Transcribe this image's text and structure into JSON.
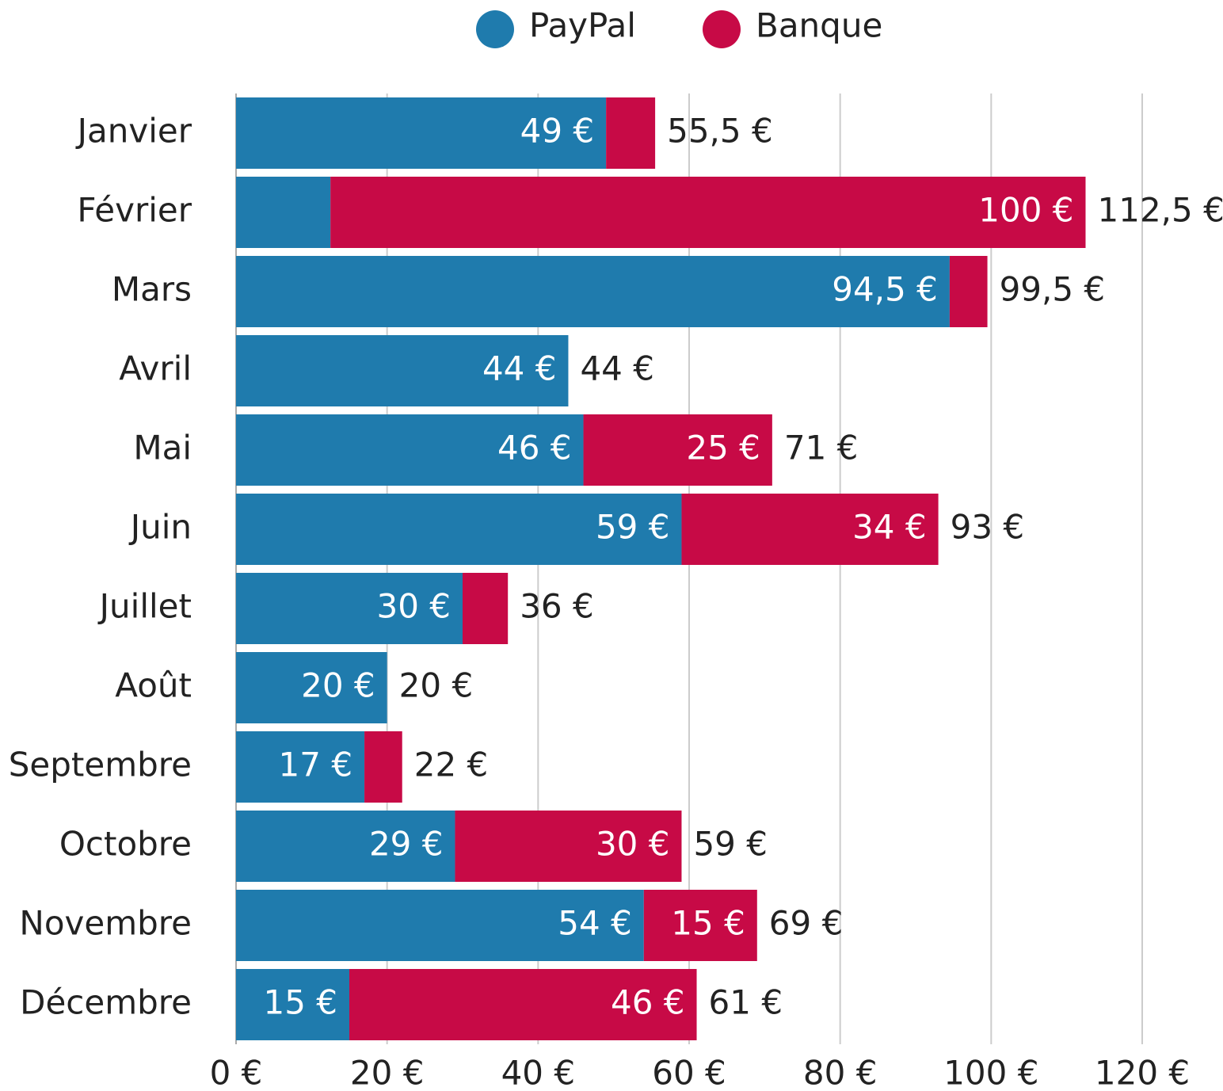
{
  "chart_data": {
    "type": "stacked-bar-horizontal",
    "categories": [
      "Janvier",
      "Février",
      "Mars",
      "Avril",
      "Mai",
      "Juin",
      "Juillet",
      "Août",
      "Septembre",
      "Octobre",
      "Novembre",
      "Décembre"
    ],
    "series": [
      {
        "name": "PayPal",
        "color": "#1f7bad",
        "values": [
          49,
          12.5,
          94.5,
          44,
          46,
          59,
          30,
          20,
          17,
          29,
          54,
          15
        ],
        "value_labels": [
          "49 €",
          null,
          "94,5 €",
          "44 €",
          "46 €",
          "59 €",
          "30 €",
          "20 €",
          "17 €",
          "29 €",
          "54 €",
          "15 €"
        ]
      },
      {
        "name": "Banque",
        "color": "#c70a46",
        "values": [
          6.5,
          100,
          5,
          0,
          25,
          34,
          6,
          0,
          5,
          30,
          15,
          46
        ],
        "value_labels": [
          null,
          "100 €",
          null,
          null,
          "25 €",
          "34 €",
          null,
          null,
          null,
          "30 €",
          "15 €",
          "46 €"
        ]
      }
    ],
    "totals": [
      55.5,
      112.5,
      99.5,
      44,
      71,
      93,
      36,
      20,
      22,
      59,
      69,
      61
    ],
    "total_labels": [
      "55,5 €",
      "112,5 €",
      "99,5 €",
      "44 €",
      "71 €",
      "93 €",
      "36 €",
      "20 €",
      "22 €",
      "59 €",
      "69 €",
      "61 €"
    ],
    "xlim": [
      0,
      120
    ],
    "xticks": [
      {
        "value": 0,
        "label": "0 €"
      },
      {
        "value": 20,
        "label": "20 €"
      },
      {
        "value": 40,
        "label": "40 €"
      },
      {
        "value": 60,
        "label": "60 €"
      },
      {
        "value": 80,
        "label": "80 €"
      },
      {
        "value": 100,
        "label": "100 €"
      },
      {
        "value": 120,
        "label": "120 €"
      }
    ],
    "grid": true,
    "legend": "top"
  }
}
